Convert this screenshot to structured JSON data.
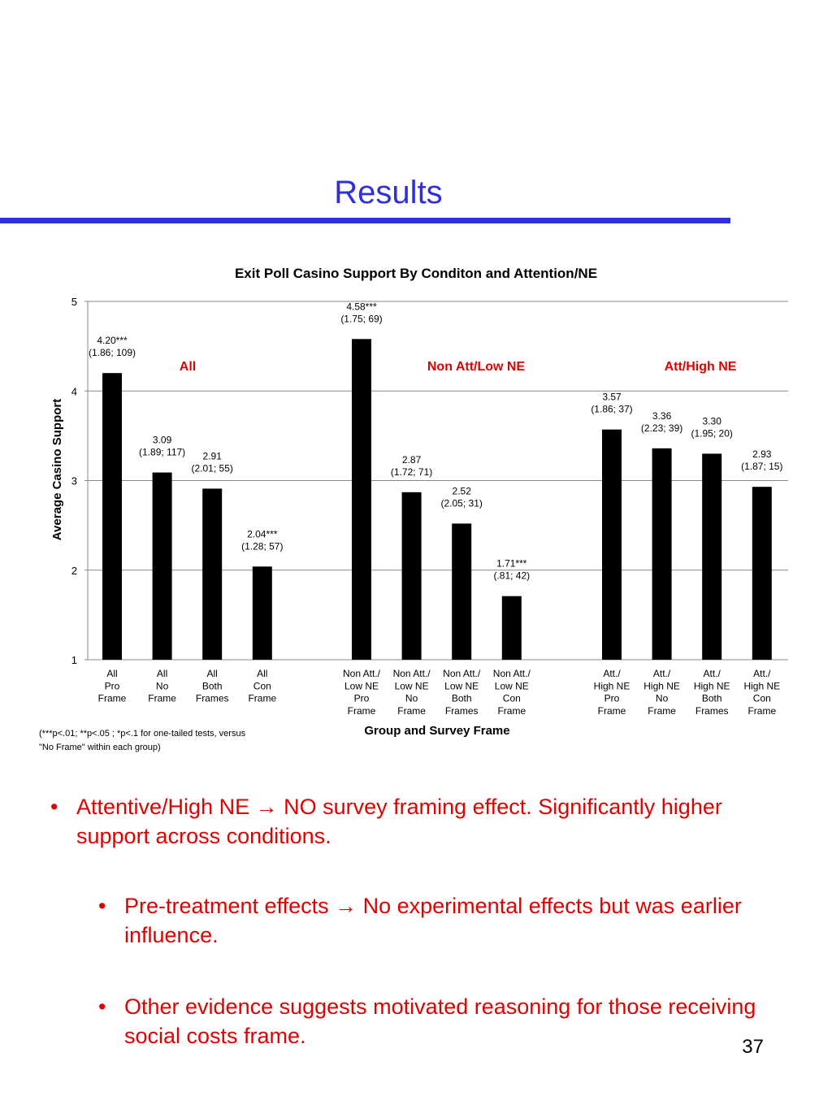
{
  "slide": {
    "title": "Results",
    "page_number": "37",
    "footnote_lines": [
      "(***p<.01; **p<.05 ; *p<.1 for one-tailed tests, versus",
      "\"No Frame\" within each group)"
    ]
  },
  "bullets": [
    {
      "level": 1,
      "text": "Attentive/High NE → NO survey framing effect. Significantly higher support across conditions."
    },
    {
      "level": 2,
      "text": "Pre-treatment effects → No experimental effects but was earlier influence."
    },
    {
      "level": 2,
      "text": "Other evidence suggests motivated reasoning for those receiving social costs frame."
    }
  ],
  "colors": {
    "title": "#2f2fe0",
    "bullets": "#e00000",
    "group_labels": "#e00000",
    "bars": "#000000"
  },
  "chart_data": {
    "type": "bar",
    "title": "Exit Poll Casino Support By Conditon and Attention/NE",
    "xlabel": "Group and Survey Frame",
    "ylabel": "Average Casino Support",
    "ylim": [
      1,
      5
    ],
    "yticks": [
      "1",
      "2",
      "3",
      "4",
      "5"
    ],
    "grid": true,
    "groups": [
      "All",
      "Non Att/Low NE",
      "Att/High NE"
    ],
    "bars": [
      {
        "group": 0,
        "category": [
          "All",
          "Pro",
          "Frame"
        ],
        "value": 4.2,
        "label": [
          "4.20***",
          "(1.86; 109)"
        ]
      },
      {
        "group": 0,
        "category": [
          "All",
          "No",
          "Frame"
        ],
        "value": 3.09,
        "label": [
          "3.09",
          "(1.89; 117)"
        ]
      },
      {
        "group": 0,
        "category": [
          "All",
          "Both",
          "Frames"
        ],
        "value": 2.91,
        "label": [
          "2.91",
          "(2.01; 55)"
        ]
      },
      {
        "group": 0,
        "category": [
          "All",
          "Con",
          "Frame"
        ],
        "value": 2.04,
        "label": [
          "2.04***",
          "(1.28; 57)"
        ]
      },
      {
        "group": 1,
        "category": [
          "Non Att./",
          "Low NE",
          "Pro",
          "Frame"
        ],
        "value": 4.58,
        "label": [
          "4.58***",
          "(1.75; 69)"
        ]
      },
      {
        "group": 1,
        "category": [
          "Non Att./",
          "Low NE",
          "No",
          "Frame"
        ],
        "value": 2.87,
        "label": [
          "2.87",
          "(1.72; 71)"
        ]
      },
      {
        "group": 1,
        "category": [
          "Non Att./",
          "Low NE",
          "Both",
          "Frames"
        ],
        "value": 2.52,
        "label": [
          "2.52",
          "(2.05; 31)"
        ]
      },
      {
        "group": 1,
        "category": [
          "Non Att./",
          "Low NE",
          "Con",
          "Frame"
        ],
        "value": 1.71,
        "label": [
          "1.71***",
          "(.81; 42)"
        ]
      },
      {
        "group": 2,
        "category": [
          "Att./",
          "High NE",
          "Pro",
          "Frame"
        ],
        "value": 3.57,
        "label": [
          "3.57",
          "(1.86; 37)"
        ]
      },
      {
        "group": 2,
        "category": [
          "Att./",
          "High NE",
          "No",
          "Frame"
        ],
        "value": 3.36,
        "label": [
          "3.36",
          "(2.23; 39)"
        ]
      },
      {
        "group": 2,
        "category": [
          "Att./",
          "High NE",
          "Both",
          "Frames"
        ],
        "value": 3.3,
        "label": [
          "3.30",
          "(1.95; 20)"
        ]
      },
      {
        "group": 2,
        "category": [
          "Att./",
          "High NE",
          "Con",
          "Frame"
        ],
        "value": 2.93,
        "label": [
          "2.93",
          "(1.87; 15)"
        ]
      }
    ]
  }
}
